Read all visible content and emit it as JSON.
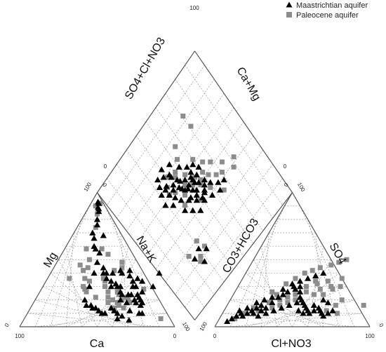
{
  "chart_data": {
    "type": "scatter",
    "subtype": "piper-diagram",
    "legend_position": "top-right",
    "series": [
      {
        "name": "Maastrichtian aquifer",
        "marker": "triangle",
        "color": "#000000"
      },
      {
        "name": "Paleocene aquifer",
        "marker": "square",
        "color": "#8c8c8c"
      }
    ],
    "cation_triangle": {
      "axes": {
        "left": "Mg",
        "right": "Na+K",
        "bottom": "Ca"
      },
      "tick_labels": {
        "bottom_left": "100",
        "bottom_right": "0",
        "top_left": "100",
        "top_right": "0",
        "left_corner": "0",
        "right_corner": "100"
      },
      "points": {
        "Maastrichtian aquifer": [
          [
            70,
            40
          ],
          [
            71,
            30
          ],
          [
            70,
            18
          ],
          [
            68,
            5
          ],
          [
            70,
            16
          ],
          [
            68,
            20
          ],
          [
            66,
            22
          ],
          [
            65,
            12
          ],
          [
            62,
            8
          ],
          [
            60,
            6
          ],
          [
            58,
            10
          ],
          [
            55,
            12
          ],
          [
            52,
            14
          ],
          [
            50,
            10
          ],
          [
            48,
            10
          ],
          [
            45,
            12
          ],
          [
            42,
            14
          ],
          [
            40,
            14
          ],
          [
            38,
            16
          ],
          [
            35,
            16
          ],
          [
            32,
            20
          ],
          [
            30,
            30
          ],
          [
            28,
            40
          ],
          [
            26,
            48
          ],
          [
            24,
            55
          ],
          [
            20,
            58
          ],
          [
            18,
            60
          ],
          [
            15,
            66
          ],
          [
            12,
            70
          ],
          [
            12,
            76
          ],
          [
            20,
            68
          ],
          [
            10,
            80
          ],
          [
            8,
            86
          ],
          [
            7,
            88
          ],
          [
            6,
            89
          ],
          [
            5,
            92
          ],
          [
            4,
            93
          ],
          [
            72,
            10
          ],
          [
            74,
            10
          ],
          [
            66,
            18
          ],
          [
            64,
            20
          ],
          [
            60,
            18
          ],
          [
            60,
            24
          ],
          [
            58,
            24
          ],
          [
            58,
            30
          ],
          [
            55,
            20
          ],
          [
            54,
            24
          ],
          [
            52,
            26
          ],
          [
            50,
            30
          ],
          [
            48,
            30
          ],
          [
            46,
            32
          ],
          [
            44,
            30
          ],
          [
            42,
            34
          ],
          [
            40,
            40
          ],
          [
            38,
            36
          ],
          [
            36,
            40
          ],
          [
            34,
            40
          ],
          [
            32,
            44
          ],
          [
            60,
            30
          ],
          [
            64,
            24
          ],
          [
            66,
            26
          ],
          [
            62,
            34
          ],
          [
            56,
            34
          ],
          [
            58,
            36
          ],
          [
            52,
            38
          ],
          [
            50,
            42
          ],
          [
            46,
            40
          ],
          [
            44,
            42
          ]
        ],
        "Paleocene aquifer": [
          [
            88,
            6
          ],
          [
            66,
            28
          ],
          [
            62,
            18
          ],
          [
            60,
            14
          ],
          [
            56,
            16
          ],
          [
            54,
            14
          ],
          [
            56,
            20
          ],
          [
            60,
            20
          ],
          [
            58,
            22
          ],
          [
            52,
            24
          ],
          [
            54,
            18
          ],
          [
            50,
            20
          ],
          [
            48,
            18
          ],
          [
            50,
            26
          ],
          [
            46,
            22
          ],
          [
            44,
            26
          ],
          [
            40,
            30
          ],
          [
            38,
            34
          ],
          [
            36,
            36
          ],
          [
            40,
            42
          ],
          [
            44,
            44
          ],
          [
            42,
            48
          ],
          [
            30,
            26
          ],
          [
            28,
            28
          ],
          [
            24,
            36
          ],
          [
            20,
            50
          ],
          [
            16,
            46
          ],
          [
            14,
            58
          ],
          [
            12,
            74
          ],
          [
            8,
            84
          ],
          [
            6,
            92
          ],
          [
            4,
            90
          ],
          [
            28,
            34
          ],
          [
            26,
            30
          ],
          [
            22,
            44
          ],
          [
            30,
            54
          ],
          [
            14,
            36
          ],
          [
            24,
            58
          ],
          [
            20,
            42
          ],
          [
            38,
            22
          ]
        ]
      }
    },
    "anion_triangle": {
      "axes": {
        "left": "CO3+HCO3",
        "right": "SO4",
        "bottom": "Cl+NO3"
      },
      "tick_labels": {
        "bottom_left": "0",
        "bottom_right": "100",
        "top_left": "0",
        "top_right": "100",
        "left_corner": "100",
        "right_corner": "0"
      },
      "points": {
        "Maastrichtian aquifer": [
          [
            6,
            4
          ],
          [
            8,
            6
          ],
          [
            10,
            8
          ],
          [
            12,
            10
          ],
          [
            14,
            8
          ],
          [
            16,
            10
          ],
          [
            18,
            12
          ],
          [
            20,
            14
          ],
          [
            22,
            16
          ],
          [
            24,
            12
          ],
          [
            26,
            14
          ],
          [
            28,
            18
          ],
          [
            30,
            22
          ],
          [
            32,
            24
          ],
          [
            34,
            26
          ],
          [
            36,
            30
          ],
          [
            38,
            28
          ],
          [
            40,
            30
          ],
          [
            42,
            26
          ],
          [
            44,
            22
          ],
          [
            46,
            20
          ],
          [
            48,
            18
          ],
          [
            50,
            16
          ],
          [
            52,
            14
          ],
          [
            54,
            12
          ],
          [
            56,
            10
          ],
          [
            58,
            12
          ],
          [
            60,
            14
          ],
          [
            62,
            12
          ],
          [
            64,
            10
          ],
          [
            66,
            8
          ],
          [
            68,
            10
          ],
          [
            70,
            12
          ],
          [
            10,
            12
          ],
          [
            14,
            14
          ],
          [
            18,
            18
          ],
          [
            22,
            20
          ],
          [
            26,
            22
          ],
          [
            30,
            28
          ],
          [
            34,
            32
          ],
          [
            38,
            34
          ],
          [
            42,
            36
          ],
          [
            46,
            38
          ],
          [
            50,
            40
          ],
          [
            20,
            10
          ],
          [
            24,
            8
          ],
          [
            28,
            10
          ],
          [
            32,
            12
          ],
          [
            36,
            14
          ],
          [
            40,
            16
          ],
          [
            44,
            18
          ],
          [
            48,
            12
          ],
          [
            52,
            10
          ],
          [
            56,
            16
          ],
          [
            60,
            20
          ],
          [
            64,
            18
          ]
        ],
        "Paleocene aquifer": [
          [
            88,
            16
          ],
          [
            52,
            46
          ],
          [
            56,
            48
          ],
          [
            60,
            50
          ],
          [
            64,
            36
          ],
          [
            66,
            12
          ],
          [
            70,
            16
          ],
          [
            72,
            20
          ],
          [
            74,
            10
          ],
          [
            60,
            30
          ],
          [
            56,
            34
          ],
          [
            50,
            32
          ],
          [
            46,
            26
          ],
          [
            42,
            20
          ],
          [
            38,
            18
          ],
          [
            34,
            16
          ],
          [
            30,
            14
          ],
          [
            26,
            18
          ],
          [
            22,
            12
          ],
          [
            18,
            14
          ],
          [
            14,
            10
          ],
          [
            10,
            6
          ],
          [
            40,
            24
          ],
          [
            36,
            22
          ],
          [
            32,
            20
          ],
          [
            28,
            24
          ],
          [
            24,
            26
          ],
          [
            44,
            30
          ],
          [
            48,
            34
          ],
          [
            52,
            24
          ],
          [
            54,
            28
          ],
          [
            58,
            24
          ],
          [
            62,
            28
          ],
          [
            66,
            30
          ],
          [
            30,
            32
          ],
          [
            34,
            36
          ],
          [
            38,
            40
          ],
          [
            42,
            42
          ],
          [
            46,
            44
          ]
        ]
      }
    },
    "diamond": {
      "axes": {
        "upper_left": "SO4+Cl+NO3",
        "upper_right": "Ca+Mg"
      },
      "tick_labels": {
        "top": "100",
        "left": "0",
        "right": "0",
        "bottom": "100"
      },
      "points": {
        "Maastrichtian aquifer": [
          [
            38,
            67
          ],
          [
            45,
            58
          ],
          [
            50,
            48
          ],
          [
            44,
            60
          ],
          [
            48,
            55
          ],
          [
            52,
            50
          ],
          [
            55,
            45
          ],
          [
            58,
            40
          ],
          [
            47,
            62
          ],
          [
            42,
            64
          ],
          [
            36,
            66
          ],
          [
            40,
            62
          ],
          [
            46,
            56
          ],
          [
            50,
            56
          ],
          [
            54,
            54
          ],
          [
            56,
            52
          ],
          [
            52,
            44
          ],
          [
            48,
            46
          ],
          [
            44,
            50
          ],
          [
            40,
            54
          ],
          [
            38,
            58
          ],
          [
            36,
            62
          ],
          [
            34,
            70
          ],
          [
            40,
            72
          ],
          [
            44,
            70
          ],
          [
            46,
            64
          ],
          [
            50,
            60
          ],
          [
            54,
            58
          ],
          [
            58,
            56
          ],
          [
            62,
            58
          ],
          [
            60,
            50
          ],
          [
            56,
            46
          ],
          [
            52,
            42
          ],
          [
            46,
            40
          ],
          [
            42,
            44
          ],
          [
            38,
            48
          ],
          [
            34,
            56
          ],
          [
            30,
            60
          ],
          [
            32,
            66
          ],
          [
            36,
            74
          ],
          [
            42,
            76
          ],
          [
            48,
            74
          ],
          [
            52,
            68
          ],
          [
            56,
            64
          ],
          [
            60,
            62
          ],
          [
            46,
            50
          ],
          [
            50,
            52
          ],
          [
            54,
            56
          ],
          [
            58,
            48
          ],
          [
            62,
            46
          ],
          [
            66,
            42
          ],
          [
            64,
            38
          ],
          [
            30,
            26
          ],
          [
            34,
            22
          ],
          [
            28,
            18
          ],
          [
            24,
            24
          ],
          [
            70,
            40
          ],
          [
            56,
            60
          ],
          [
            44,
            68
          ]
        ],
        "Paleocene aquifer": [
          [
            74,
            86
          ],
          [
            74,
            78
          ],
          [
            58,
            78
          ],
          [
            54,
            72
          ],
          [
            62,
            64
          ],
          [
            66,
            58
          ],
          [
            70,
            54
          ],
          [
            56,
            50
          ],
          [
            50,
            44
          ],
          [
            46,
            66
          ],
          [
            40,
            60
          ],
          [
            38,
            66
          ],
          [
            42,
            70
          ],
          [
            48,
            68
          ],
          [
            52,
            62
          ],
          [
            56,
            56
          ],
          [
            44,
            54
          ],
          [
            40,
            50
          ],
          [
            60,
            44
          ],
          [
            64,
            50
          ],
          [
            68,
            46
          ],
          [
            66,
            36
          ],
          [
            72,
            44
          ],
          [
            76,
            48
          ],
          [
            32,
            30
          ],
          [
            28,
            22
          ],
          [
            26,
            20
          ],
          [
            34,
            24
          ],
          [
            22,
            28
          ],
          [
            36,
            62
          ],
          [
            48,
            58
          ],
          [
            52,
            54
          ],
          [
            58,
            52
          ],
          [
            62,
            54
          ],
          [
            80,
            40
          ],
          [
            84,
            44
          ]
        ]
      }
    }
  }
}
